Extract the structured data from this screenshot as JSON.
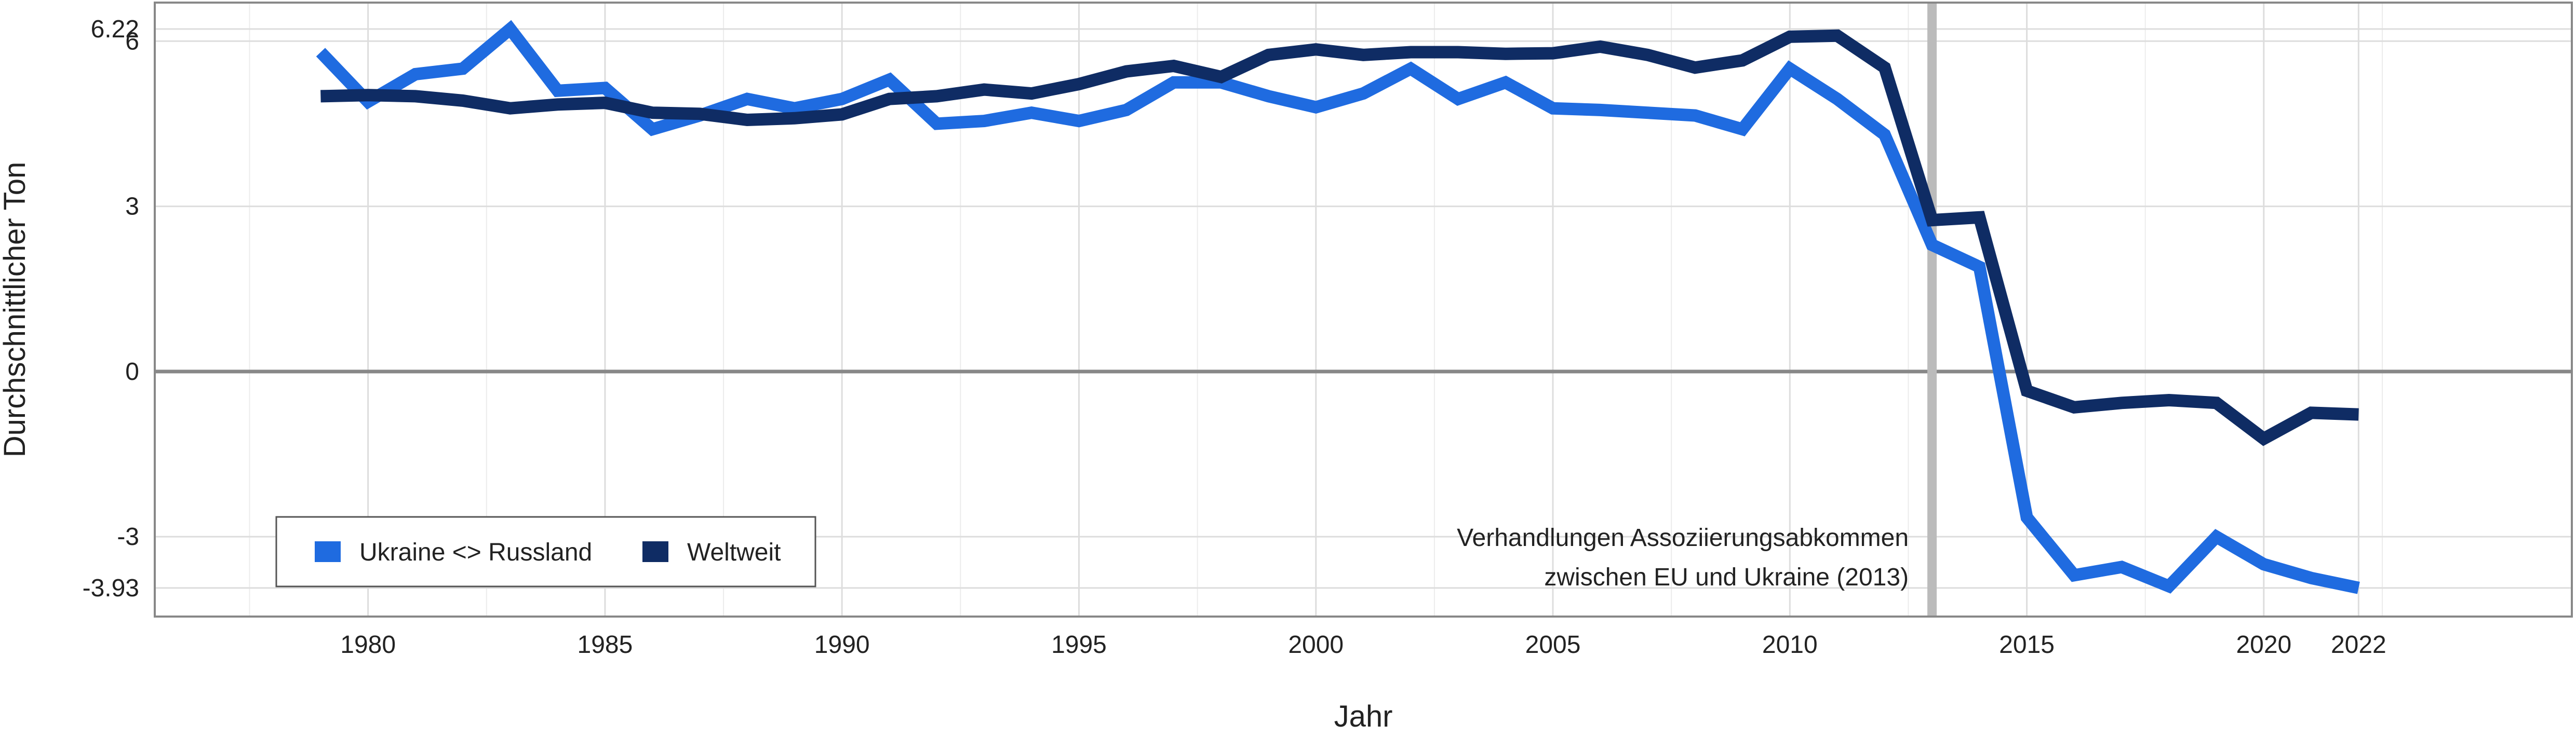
{
  "chart_data": {
    "type": "line",
    "title": "",
    "xlabel": "Jahr",
    "ylabel": "Durchschnittlicher Ton",
    "xlim": [
      1975.5,
      2026.5
    ],
    "ylim": [
      -4.45,
      6.7
    ],
    "x_ticks": [
      1980,
      1985,
      1990,
      1995,
      2000,
      2005,
      2010,
      2015,
      2020,
      2022
    ],
    "y_ticks": [
      -3.93,
      -3,
      0,
      3,
      6,
      6.22
    ],
    "y_tick_labels": [
      "-3.93",
      "-3",
      "0",
      "3",
      "6",
      "6.22"
    ],
    "grid": true,
    "legend_position": "bottom-left",
    "colors": {
      "ukraine_russia": "#1f6be0",
      "worldwide": "#0f2c64",
      "zero_line": "#888888",
      "event_line": "#bbbbbb",
      "grid": "#dddddd"
    },
    "x": [
      1979,
      1980,
      1981,
      1982,
      1983,
      1984,
      1985,
      1986,
      1987,
      1988,
      1989,
      1990,
      1991,
      1992,
      1993,
      1994,
      1995,
      1996,
      1997,
      1998,
      1999,
      2000,
      2001,
      2002,
      2003,
      2004,
      2005,
      2006,
      2007,
      2008,
      2009,
      2010,
      2011,
      2012,
      2013,
      2014,
      2015,
      2016,
      2017,
      2018,
      2019,
      2020,
      2021,
      2022
    ],
    "series": [
      {
        "name": "Ukraine <> Russland",
        "color": "#1f6be0",
        "values": [
          5.8,
          4.9,
          5.4,
          5.5,
          6.22,
          5.1,
          5.15,
          4.4,
          4.65,
          4.95,
          4.78,
          4.95,
          5.3,
          4.5,
          4.55,
          4.7,
          4.55,
          4.75,
          5.25,
          5.25,
          5.0,
          4.8,
          5.05,
          5.5,
          4.95,
          5.25,
          4.78,
          4.75,
          4.7,
          4.65,
          4.4,
          5.5,
          4.95,
          4.3,
          2.3,
          1.9,
          -2.65,
          -3.7,
          -3.55,
          -3.9,
          -3.0,
          -3.5,
          -3.75,
          -3.93
        ]
      },
      {
        "name": "Weltweit",
        "color": "#0f2c64",
        "values": [
          5.0,
          5.02,
          5.0,
          4.92,
          4.78,
          4.85,
          4.88,
          4.7,
          4.68,
          4.57,
          4.6,
          4.67,
          4.95,
          5.0,
          5.12,
          5.05,
          5.22,
          5.45,
          5.55,
          5.35,
          5.75,
          5.85,
          5.75,
          5.8,
          5.8,
          5.77,
          5.78,
          5.9,
          5.75,
          5.52,
          5.65,
          6.08,
          6.1,
          5.52,
          2.75,
          2.8,
          -0.35,
          -0.65,
          -0.57,
          -0.52,
          -0.57,
          -1.22,
          -0.75,
          -0.78
        ]
      }
    ],
    "event_line": {
      "x": 2013,
      "annotation": [
        "Verhandlungen Assoziierungsabkommen",
        "zwischen EU und Ukraine (2013)"
      ]
    }
  }
}
